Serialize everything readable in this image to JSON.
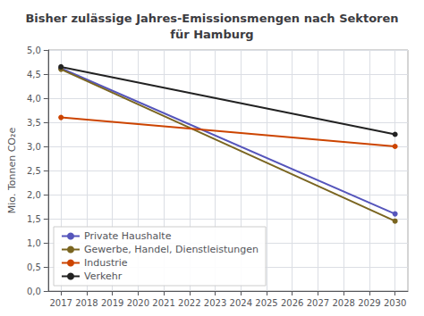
{
  "chart_data": {
    "type": "line",
    "title": "Bisher zulässige Jahres-Emissionsmengen nach Sektoren\nfür Hamburg",
    "ylabel": "Mio. Tonnen CO₂e",
    "x": [
      2017,
      2030
    ],
    "series": [
      {
        "name": "Private Haushalte",
        "color": "#5555bb",
        "values": [
          4.62,
          1.6
        ]
      },
      {
        "name": "Gewerbe, Handel, Dienstleistungen",
        "color": "#7a6520",
        "values": [
          4.6,
          1.45
        ]
      },
      {
        "name": "Industrie",
        "color": "#cc4400",
        "values": [
          3.6,
          3.0
        ]
      },
      {
        "name": "Verkehr",
        "color": "#222222",
        "values": [
          4.65,
          3.25
        ]
      }
    ],
    "xlim": [
      2016.5,
      2030.5
    ],
    "ylim": [
      0.0,
      5.0
    ],
    "xticks": [
      2017,
      2018,
      2019,
      2020,
      2021,
      2022,
      2023,
      2024,
      2025,
      2026,
      2027,
      2028,
      2029,
      2030
    ],
    "yticks": [
      {
        "value": 0.0,
        "label": "0,0"
      },
      {
        "value": 0.5,
        "label": "0,5"
      },
      {
        "value": 1.0,
        "label": "1,0"
      },
      {
        "value": 1.5,
        "label": "1,5"
      },
      {
        "value": 2.0,
        "label": "2,0"
      },
      {
        "value": 2.5,
        "label": "2,5"
      },
      {
        "value": 3.0,
        "label": "3,0"
      },
      {
        "value": 3.5,
        "label": "3,5"
      },
      {
        "value": 4.0,
        "label": "4,0"
      },
      {
        "value": 4.5,
        "label": "4,5"
      },
      {
        "value": 5.0,
        "label": "5,0"
      }
    ],
    "grid": true,
    "legend": "lower left",
    "marker": "circle"
  }
}
